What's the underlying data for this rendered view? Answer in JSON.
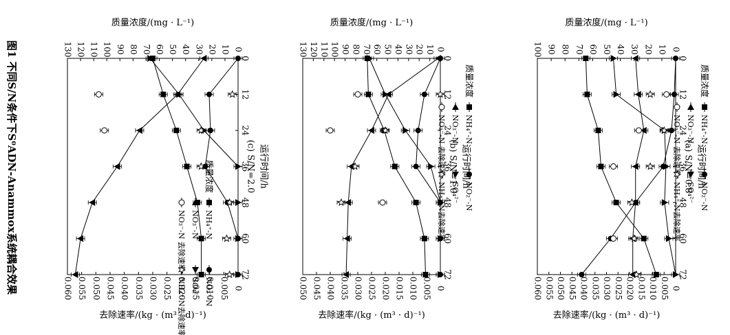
{
  "figure_caption": "图1 不同S/N条件下S⁰ADN-Anammox系统耦合效果",
  "chart_data": [
    {
      "type": "line",
      "panel_label": "(a) S/N=0.8",
      "xlabel": "运行时间/h",
      "ylabel_left": "质量浓度/(mg · L⁻¹)",
      "ylabel_right": "去除速率/(kg · (m³ · d)⁻¹)",
      "x_ticks": [
        0,
        12,
        24,
        36,
        48,
        60,
        72
      ],
      "xlim": [
        0,
        72
      ],
      "ylim_left": [
        0,
        100
      ],
      "yticks_left": [
        0,
        10,
        20,
        30,
        40,
        50,
        60,
        70,
        80,
        90,
        100
      ],
      "ylim_right": [
        0,
        0.06
      ],
      "yticks_right": [
        "0",
        "0.005",
        "0.010",
        "0.015",
        "0.020",
        "0.025",
        "0.030",
        "0.035",
        "0.040",
        "0.045",
        "0.050",
        "0.055",
        "0.060"
      ],
      "legend": {
        "title": "质量浓度",
        "entries": [
          "NH₄⁺-N",
          "NO₂⁻-N",
          "NO₃⁻-N",
          "SO₄²⁻",
          "NO₃⁻-N 去除速率",
          "NH₄⁺-N去除速率"
        ]
      },
      "series": [
        {
          "name": "NH₄⁺-N",
          "axis": "left",
          "marker": "square",
          "x": [
            0,
            12,
            24,
            36,
            48,
            60,
            72
          ],
          "y": [
            65,
            64,
            56,
            54,
            43,
            23,
            14
          ]
        },
        {
          "name": "NO₂⁻-N",
          "axis": "left",
          "marker": "circle",
          "x": [
            0,
            12,
            24,
            36,
            48,
            60,
            72
          ],
          "y": [
            0,
            1,
            3,
            9,
            29,
            47,
            68
          ]
        },
        {
          "name": "NO₃⁻-N",
          "axis": "left",
          "marker": "triangle-up",
          "x": [
            0,
            12,
            24,
            36,
            48,
            60,
            72
          ],
          "y": [
            29,
            27,
            23,
            29,
            29,
            31,
            31
          ]
        },
        {
          "name": "SO₄²⁻",
          "axis": "left",
          "marker": "triangle-down",
          "x": [
            0,
            12,
            24,
            36,
            48,
            60,
            72
          ],
          "y": [
            45,
            43,
            8,
            7,
            8,
            5,
            0
          ]
        },
        {
          "name": "NO₃⁻-N 去除速率",
          "axis": "right",
          "marker": "open-circle",
          "x": [
            12,
            24,
            36,
            60
          ],
          "y": [
            0.004,
            0.016,
            0.027,
            0.027
          ]
        },
        {
          "name": "NH₄⁺-N去除速率",
          "axis": "right",
          "marker": "star",
          "x": [
            12,
            24,
            36,
            48,
            60,
            72
          ],
          "y": [
            0.011,
            0.005,
            0.011,
            0.019,
            0.018,
            0.017
          ]
        }
      ]
    },
    {
      "type": "line",
      "panel_label": "(b) S/N=1.0",
      "xlabel": "运行时间/h",
      "ylabel_left": "质量浓度/(mg · L⁻¹)",
      "ylabel_right": "去除速率/(kg · (m³ · d)⁻¹)",
      "x_ticks": [
        0,
        12,
        24,
        36,
        48,
        60,
        72
      ],
      "xlim": [
        0,
        72
      ],
      "ylim_left": [
        0,
        130
      ],
      "yticks_left": [
        0,
        10,
        20,
        30,
        40,
        50,
        60,
        70,
        80,
        90,
        100,
        110,
        120,
        130
      ],
      "ylim_right": [
        0,
        0.05
      ],
      "yticks_right": [
        "0",
        "0.005",
        "0.010",
        "0.015",
        "0.020",
        "0.025",
        "0.030",
        "0.035",
        "0.040",
        "0.045",
        "0.050"
      ],
      "legend": {
        "title": "质量浓度",
        "entries": [
          "NH₄⁺-N",
          "NO₂⁻-N",
          "NO₃⁻-N",
          "SO₄²⁻",
          "NO₃⁻-N 去除速率",
          "NH₄⁺-N去除速率"
        ]
      },
      "series": [
        {
          "name": "NH₄⁺-N",
          "axis": "left",
          "marker": "square",
          "x": [
            0,
            12,
            24,
            36,
            48,
            60,
            72
          ],
          "y": [
            69,
            68,
            53,
            43,
            23,
            15,
            14
          ]
        },
        {
          "name": "NO₂⁻-N",
          "axis": "left",
          "marker": "circle",
          "x": [
            0,
            12,
            24,
            36,
            48,
            60,
            72
          ],
          "y": [
            0,
            15,
            21,
            23,
            0,
            0,
            0
          ]
        },
        {
          "name": "NO₃⁻-N",
          "axis": "left",
          "marker": "triangle-up",
          "x": [
            0,
            12,
            24,
            36,
            48,
            60,
            72
          ],
          "y": [
            2,
            49,
            65,
            84,
            87,
            88,
            89
          ]
        },
        {
          "name": "SO₄²⁻",
          "axis": "left",
          "marker": "triangle-down",
          "x": [
            0,
            12,
            24,
            36,
            48,
            60,
            72
          ],
          "y": [
            67,
            52,
            33,
            9,
            0,
            0,
            0
          ]
        },
        {
          "name": "NO₃⁻-N 去除速率",
          "axis": "right",
          "marker": "open-circle",
          "x": [
            12,
            24,
            48
          ],
          "y": [
            0.03,
            0.04,
            0.021
          ]
        },
        {
          "name": "NH₄⁺-N去除速率",
          "axis": "right",
          "marker": "star",
          "x": [
            12,
            24,
            36,
            48
          ],
          "y": [
            0.0,
            0.02,
            0.031,
            0.036
          ]
        }
      ]
    },
    {
      "type": "line",
      "panel_label": "(c) S/N=2.0",
      "xlabel": "运行时间/h",
      "ylabel_left": "质量浓度/(mg · L⁻¹)",
      "ylabel_right": "去除速率/(kg · (m³ · d)⁻¹)",
      "x_ticks": [
        0,
        12,
        24,
        36,
        48,
        60,
        72
      ],
      "xlim": [
        0,
        72
      ],
      "ylim_left": [
        0,
        130
      ],
      "yticks_left": [
        0,
        10,
        20,
        30,
        40,
        50,
        60,
        70,
        80,
        90,
        100,
        110,
        120,
        130
      ],
      "ylim_right": [
        0,
        0.06
      ],
      "yticks_right": [
        "0",
        "0.005",
        "0.010",
        "0.015",
        "0.020",
        "0.025",
        "0.030",
        "0.035",
        "0.040",
        "0.045",
        "0.050",
        "0.055",
        "0.060"
      ],
      "legend": {
        "title": "质量浓度",
        "entries": [
          "NH₄⁺-N",
          "NO₂⁻-N",
          "NO₃⁻-N",
          "SO₄²⁻",
          "NO₃⁻-N 去除速率",
          "NH₄⁺-N去除速率"
        ]
      },
      "series": [
        {
          "name": "NH₄⁺-N",
          "axis": "left",
          "marker": "square",
          "x": [
            0,
            12,
            24,
            36,
            48,
            60,
            72
          ],
          "y": [
            65,
            57,
            47,
            39,
            31,
            28,
            28
          ]
        },
        {
          "name": "NO₂⁻-N",
          "axis": "left",
          "marker": "circle",
          "x": [
            0,
            12,
            24,
            36,
            48,
            60,
            72
          ],
          "y": [
            0,
            22,
            21,
            25,
            8,
            0,
            0
          ]
        },
        {
          "name": "NO₃⁻-N",
          "axis": "left",
          "marker": "triangle-up",
          "x": [
            0,
            12,
            24,
            36,
            48,
            60,
            72
          ],
          "y": [
            26,
            46,
            75,
            92,
            111,
            120,
            124
          ]
        },
        {
          "name": "SO₄²⁻",
          "axis": "left",
          "marker": "triangle-down",
          "x": [
            0,
            12,
            24,
            36,
            48,
            60,
            72
          ],
          "y": [
            67,
            45,
            26,
            0,
            0,
            0,
            0
          ]
        },
        {
          "name": "NO₃⁻-N 去除速率",
          "axis": "right",
          "marker": "open-circle",
          "x": [
            12,
            24
          ],
          "y": [
            0.049,
            0.047
          ]
        },
        {
          "name": "NH₄⁺-N去除速率",
          "axis": "right",
          "marker": "star",
          "x": [
            12,
            24,
            36,
            48,
            60,
            72
          ],
          "y": [
            0.002,
            0.013,
            0.013,
            0.003,
            0.004,
            0.003
          ]
        }
      ]
    }
  ]
}
